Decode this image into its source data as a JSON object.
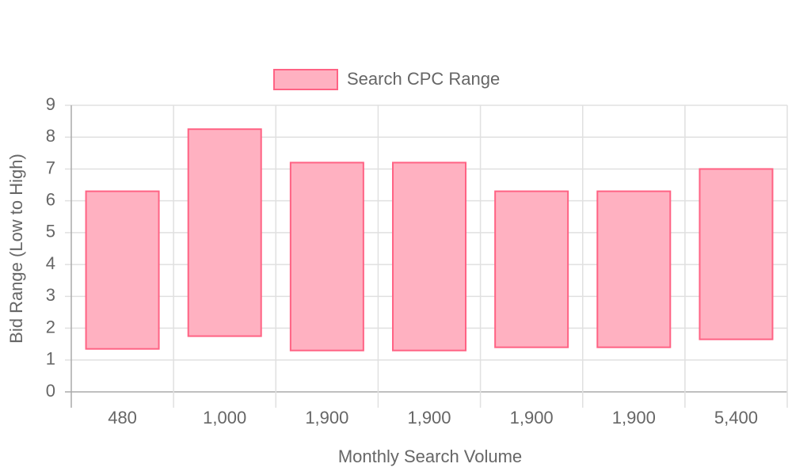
{
  "chart_data": {
    "type": "bar",
    "categories": [
      "480",
      "1,000",
      "1,900",
      "1,900",
      "1,900",
      "1,900",
      "5,400"
    ],
    "series": [
      {
        "name": "Search CPC Range",
        "color": "#ff6384",
        "fill": "#ffb1c1",
        "low": [
          1.35,
          1.75,
          1.3,
          1.3,
          1.4,
          1.4,
          1.65
        ],
        "high": [
          6.3,
          8.25,
          7.2,
          7.2,
          6.3,
          6.3,
          7
        ]
      }
    ],
    "x_label": "Monthly Search Volume",
    "y_label": "Bid Range (Low to High)",
    "ylim": [
      0,
      9
    ],
    "yticks": [
      0,
      1,
      2,
      3,
      4,
      5,
      6,
      7,
      8,
      9
    ],
    "grid": true,
    "legend": "top"
  }
}
